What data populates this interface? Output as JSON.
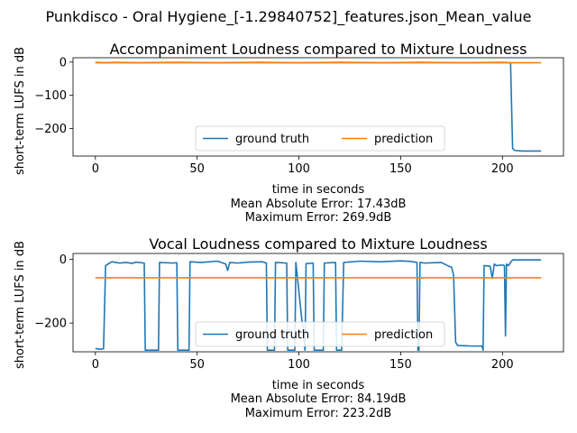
{
  "suptitle": "Punkdisco - Oral Hygiene_[-1.29840752]_features.json_Mean_value",
  "colors": {
    "ground_truth": "#1f77b4",
    "prediction": "#ff7f0e"
  },
  "chart_data": [
    {
      "type": "line",
      "title": "Accompaniment Loudness compared to Mixture Loudness",
      "xlabel": "time in seconds",
      "ylabel": "short-term LUFS in dB",
      "xlim": [
        -11,
        230
      ],
      "ylim": [
        -283,
        13
      ],
      "xticks": [
        0,
        50,
        100,
        150,
        200
      ],
      "yticks": [
        0,
        -100,
        -200
      ],
      "legend": "lower-center",
      "grid": false,
      "caption": [
        "Mean Absolute Error: 17.43dB",
        "Maximum Error: 269.9dB"
      ],
      "series": [
        {
          "name": "ground truth",
          "x": [
            0,
            5,
            10,
            20,
            40,
            60,
            80,
            100,
            120,
            140,
            160,
            180,
            200,
            204,
            205,
            206,
            210,
            219
          ],
          "y": [
            -1,
            -2,
            -1,
            -2,
            -1,
            -2,
            -1,
            -2,
            -1,
            -2,
            -1,
            -2,
            -1,
            -2,
            -260,
            -266,
            -268,
            -268
          ]
        },
        {
          "name": "prediction",
          "x": [
            0,
            219
          ],
          "y": [
            -2,
            -2
          ]
        }
      ]
    },
    {
      "type": "line",
      "title": "Vocal Loudness compared to Mixture Loudness",
      "xlabel": "time in seconds",
      "ylabel": "short-term LUFS in dB",
      "xlim": [
        -11,
        230
      ],
      "ylim": [
        -290,
        18
      ],
      "xticks": [
        0,
        50,
        100,
        150,
        200
      ],
      "yticks": [
        0,
        -200
      ],
      "legend": "lower-center",
      "grid": false,
      "caption": [
        "Mean Absolute Error: 84.19dB",
        "Maximum Error: 223.2dB"
      ],
      "series": [
        {
          "name": "ground truth",
          "x": [
            0,
            3,
            4,
            5,
            8,
            12,
            15,
            18,
            20,
            24,
            24.5,
            31,
            31.5,
            38,
            40,
            40.5,
            46,
            46.5,
            52,
            60,
            64,
            65,
            66,
            70,
            75,
            82,
            84,
            84.5,
            88,
            88.5,
            94,
            94.5,
            98,
            98.5,
            103,
            103.5,
            107,
            107.5,
            112,
            112.5,
            118,
            118.5,
            121,
            122,
            130,
            140,
            150,
            155,
            158,
            158.5,
            159,
            159.5,
            162,
            170,
            173,
            175,
            176,
            177,
            178,
            185,
            190,
            190.5,
            191,
            194,
            195,
            196,
            197,
            200,
            201,
            201.5,
            202,
            203,
            204,
            205,
            210,
            219
          ],
          "y": [
            -280,
            -282,
            -280,
            -20,
            -8,
            -12,
            -10,
            -13,
            -9,
            -12,
            -285,
            -285,
            -10,
            -12,
            -11,
            -285,
            -285,
            -8,
            -10,
            -6,
            -15,
            -35,
            -10,
            -12,
            -9,
            -8,
            -12,
            -285,
            -285,
            -10,
            -12,
            -285,
            -285,
            -10,
            -285,
            -14,
            -12,
            -285,
            -285,
            -12,
            -10,
            -285,
            -285,
            -10,
            -6,
            -8,
            -5,
            -7,
            -10,
            -285,
            -285,
            -10,
            -12,
            -10,
            -20,
            -25,
            -50,
            -260,
            -270,
            -272,
            -272,
            -285,
            -20,
            -22,
            -60,
            -15,
            -20,
            -18,
            -20,
            -240,
            -15,
            -20,
            -10,
            -2,
            -2,
            -2
          ]
        },
        {
          "name": "prediction",
          "x": [
            0,
            219
          ],
          "y": [
            -58,
            -58
          ]
        }
      ]
    }
  ]
}
